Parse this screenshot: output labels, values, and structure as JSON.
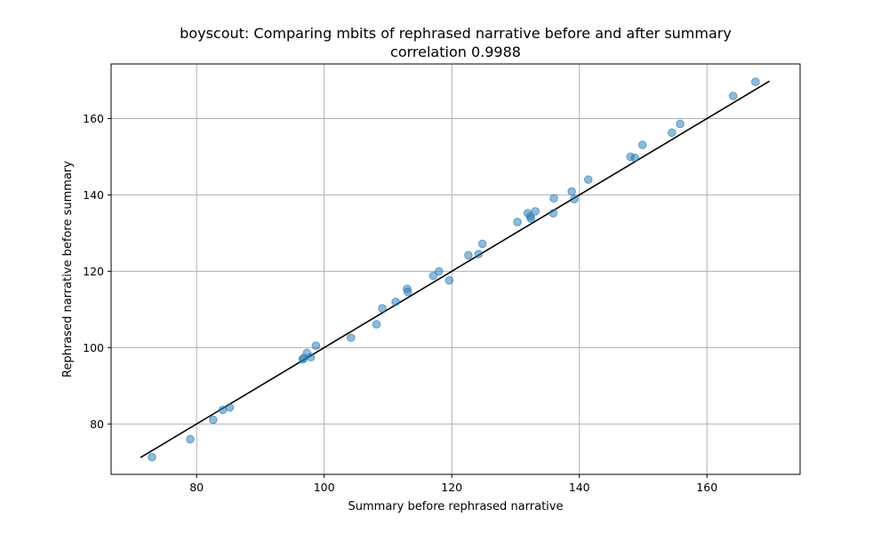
{
  "chart_data": {
    "type": "scatter",
    "title": "boyscout: Comparing mbits of rephrased narrative before and after summary",
    "subtitle": "correlation 0.9988",
    "xlabel": "Summary before rephrased narrative",
    "ylabel": "Rephrased narrative before summary",
    "xlim": [
      66.6,
      174.6
    ],
    "ylim": [
      66.8,
      174.3
    ],
    "xticks": [
      80,
      100,
      120,
      140,
      160
    ],
    "yticks": [
      80,
      100,
      120,
      140,
      160
    ],
    "grid": true,
    "point_color": "#1f77b4",
    "line_color": "#000000",
    "points": [
      {
        "x": 73.0,
        "y": 71.3
      },
      {
        "x": 79.0,
        "y": 76.0
      },
      {
        "x": 82.6,
        "y": 81.1
      },
      {
        "x": 84.1,
        "y": 83.7
      },
      {
        "x": 85.2,
        "y": 84.3
      },
      {
        "x": 96.6,
        "y": 96.9
      },
      {
        "x": 96.8,
        "y": 97.3
      },
      {
        "x": 97.3,
        "y": 98.6
      },
      {
        "x": 97.9,
        "y": 97.5
      },
      {
        "x": 98.7,
        "y": 100.5
      },
      {
        "x": 104.2,
        "y": 102.6
      },
      {
        "x": 108.2,
        "y": 106.1
      },
      {
        "x": 109.1,
        "y": 110.3
      },
      {
        "x": 111.2,
        "y": 112.0
      },
      {
        "x": 113.1,
        "y": 114.6
      },
      {
        "x": 113.0,
        "y": 115.4
      },
      {
        "x": 117.1,
        "y": 118.8
      },
      {
        "x": 118.0,
        "y": 120.0
      },
      {
        "x": 119.6,
        "y": 117.6
      },
      {
        "x": 122.6,
        "y": 124.2
      },
      {
        "x": 124.2,
        "y": 124.5
      },
      {
        "x": 124.8,
        "y": 127.2
      },
      {
        "x": 130.3,
        "y": 132.9
      },
      {
        "x": 131.9,
        "y": 135.2
      },
      {
        "x": 132.3,
        "y": 134.4
      },
      {
        "x": 132.4,
        "y": 133.8
      },
      {
        "x": 133.1,
        "y": 135.7
      },
      {
        "x": 135.9,
        "y": 135.2
      },
      {
        "x": 136.0,
        "y": 139.1
      },
      {
        "x": 138.8,
        "y": 140.9
      },
      {
        "x": 139.2,
        "y": 138.9
      },
      {
        "x": 141.4,
        "y": 144.0
      },
      {
        "x": 148.0,
        "y": 150.0
      },
      {
        "x": 148.7,
        "y": 149.7
      },
      {
        "x": 149.9,
        "y": 153.1
      },
      {
        "x": 154.5,
        "y": 156.3
      },
      {
        "x": 155.8,
        "y": 158.6
      },
      {
        "x": 164.1,
        "y": 165.9
      },
      {
        "x": 167.6,
        "y": 169.6
      }
    ],
    "fit_line": {
      "x": [
        71.2,
        169.8
      ],
      "y": [
        71.2,
        169.8
      ]
    }
  }
}
